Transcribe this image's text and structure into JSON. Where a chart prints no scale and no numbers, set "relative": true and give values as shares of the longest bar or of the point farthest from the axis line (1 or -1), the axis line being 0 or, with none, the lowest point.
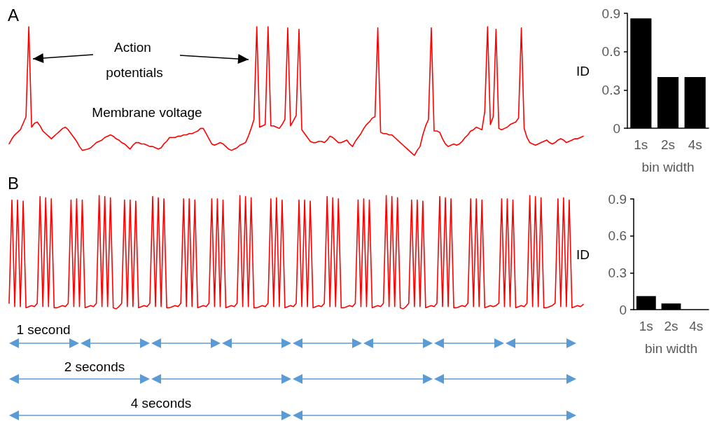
{
  "chart_data": [
    {
      "type": "line",
      "title": "A",
      "relative": true,
      "color": "#ff0000",
      "tick_labels": false,
      "grid": false,
      "annotations": [
        "Action potentials",
        "Membrane voltage"
      ],
      "categories": [
        null,
        null,
        null,
        null,
        null,
        null,
        null,
        null,
        null,
        null,
        null,
        null,
        null,
        null,
        null,
        null,
        null,
        null,
        null,
        null,
        null,
        null,
        null,
        null,
        null,
        null,
        null,
        null,
        null,
        null,
        null,
        null,
        null,
        null,
        null,
        null,
        null,
        null,
        null,
        null,
        null,
        null,
        null,
        null,
        null,
        null,
        null,
        null,
        null,
        null,
        null,
        null,
        null,
        null,
        null,
        null,
        null,
        null,
        null,
        null,
        null,
        null,
        null,
        null,
        null,
        null,
        null,
        null,
        null,
        null,
        null,
        null,
        null,
        null,
        null,
        null,
        null,
        null,
        null,
        null,
        null,
        null,
        null,
        null,
        null,
        null,
        null,
        null,
        null,
        null,
        null,
        null,
        null,
        null,
        null,
        null,
        null,
        null,
        null,
        null,
        null,
        null,
        null,
        null,
        null,
        null,
        null,
        null,
        null,
        null,
        null,
        null,
        null,
        null,
        null,
        null,
        null,
        null,
        null,
        null,
        null,
        null,
        null,
        null,
        null,
        null,
        null,
        null,
        null,
        null,
        null,
        null,
        null,
        null,
        null,
        null,
        null,
        null,
        null,
        null,
        null,
        null,
        null,
        null,
        null,
        null,
        null,
        null,
        null,
        null,
        null,
        null,
        null,
        null,
        null,
        null,
        null,
        null,
        null,
        null,
        null,
        null,
        null,
        null,
        null,
        null,
        null,
        null,
        null,
        null,
        null,
        null,
        null,
        null,
        null,
        null,
        null,
        null,
        null,
        null,
        null,
        null,
        null,
        null,
        null,
        null,
        null,
        null,
        null,
        null,
        null,
        null,
        null,
        null,
        null,
        null,
        null,
        null,
        null,
        null,
        null,
        null,
        null,
        null,
        null
      ],
      "values": [
        0.09,
        0.13,
        0.16,
        0.18,
        0.2,
        0.25,
        0.3,
        1,
        0.22,
        0.25,
        0.26,
        0.23,
        0.19,
        0.17,
        0.15,
        0.13,
        0.15,
        0.17,
        0.19,
        0.21,
        0.22,
        0.2,
        0.17,
        0.14,
        0.11,
        0.07,
        0.04,
        0.045,
        0.05,
        0.06,
        0.08,
        0.1,
        0.11,
        0.12,
        0.14,
        0.15,
        0.16,
        0.15,
        0.13,
        0.12,
        0.1,
        0.09,
        0.07,
        0.05,
        0.08,
        0.1,
        0.1,
        0.09,
        0.09,
        0.08,
        0.07,
        0.07,
        0.06,
        0.05,
        0.06,
        0.09,
        0.11,
        0.14,
        0.14,
        0.14,
        0.15,
        0.15,
        0.16,
        0.16,
        0.17,
        0.17,
        0.18,
        0.19,
        0.21,
        0.21,
        0.17,
        0.13,
        0.09,
        0.08,
        0.09,
        0.1,
        0.09,
        0.07,
        0.05,
        0.04,
        0.05,
        0.06,
        0.08,
        0.09,
        0.1,
        0.15,
        0.21,
        0.28,
        1,
        0.22,
        0.23,
        0.24,
        1,
        0.23,
        0.23,
        0.22,
        0.21,
        0.24,
        0.28,
        0.99,
        0.23,
        0.27,
        0.31,
        0.98,
        0.2,
        0.17,
        0.14,
        0.11,
        0.1,
        0.1,
        0.11,
        0.11,
        0.1,
        0.12,
        0.15,
        0.14,
        0.12,
        0.1,
        0.1,
        0.11,
        0.12,
        0.09,
        0.07,
        0.11,
        0.14,
        0.17,
        0.21,
        0.24,
        0.26,
        0.29,
        0.3,
        0.99,
        0.18,
        0.17,
        0.17,
        0.16,
        0.16,
        0.14,
        0.12,
        0.1,
        0.08,
        0.06,
        0.04,
        0.02,
        0,
        0.04,
        0.07,
        0.16,
        0.23,
        0.28,
        0.99,
        0.19,
        0.19,
        0.18,
        0.13,
        0.09,
        0.07,
        0.08,
        0.09,
        0.08,
        0.09,
        0.11,
        0.14,
        0.16,
        0.19,
        0.2,
        0.22,
        0.21,
        0.2,
        0.34,
        1,
        0.24,
        0.3,
        0.98,
        0.21,
        0.2,
        0.21,
        0.22,
        0.24,
        0.25,
        0.26,
        0.29,
        0.99,
        0.21,
        0.14,
        0.1,
        0.09,
        0.08,
        0.09,
        0.1,
        0.11,
        0.12,
        0.1,
        0.09,
        0.1,
        0.12,
        0.13,
        0.12,
        0.1,
        0.11,
        0.12,
        0.13,
        0.13,
        0.14,
        0.15
      ]
    },
    {
      "type": "bar",
      "categories": [
        "1s",
        "2s",
        "4s"
      ],
      "values": [
        0.86,
        0.4,
        0.4
      ],
      "color": "#000000",
      "xlabel": "bin width",
      "ylabel": "ID",
      "ylim": [
        0,
        0.9
      ],
      "yticks": [
        0,
        0.3,
        0.6,
        0.9
      ],
      "grid": false
    },
    {
      "type": "line",
      "title": "B",
      "relative": true,
      "color": "#ff0000",
      "tick_labels": false,
      "grid": false,
      "annotations": [
        "1 second",
        "2 seconds",
        "4 seconds"
      ],
      "categories": [
        null,
        null,
        null,
        null,
        null,
        null,
        null,
        null,
        null,
        null,
        null,
        null,
        null,
        null,
        null,
        null,
        null,
        null,
        null,
        null,
        null,
        null,
        null,
        null,
        null,
        null,
        null,
        null,
        null,
        null,
        null,
        null,
        null,
        null,
        null,
        null,
        null,
        null,
        null,
        null,
        null,
        null,
        null,
        null,
        null,
        null,
        null,
        null,
        null,
        null,
        null,
        null,
        null,
        null,
        null,
        null,
        null,
        null,
        null,
        null,
        null,
        null,
        null,
        null,
        null,
        null,
        null,
        null,
        null,
        null,
        null,
        null,
        null,
        null,
        null,
        null,
        null,
        null,
        null,
        null,
        null,
        null,
        null,
        null,
        null,
        null,
        null,
        null,
        null,
        null,
        null,
        null,
        null,
        null,
        null,
        null,
        null,
        null,
        null,
        null,
        null,
        null,
        null,
        null,
        null,
        null,
        null,
        null,
        null,
        null,
        null,
        null,
        null,
        null,
        null,
        null,
        null,
        null,
        null,
        null,
        null,
        null,
        null,
        null,
        null,
        null,
        null,
        null,
        null,
        null,
        null,
        null,
        null,
        null,
        null,
        null,
        null,
        null,
        null,
        null,
        null,
        null,
        null,
        null,
        null,
        null,
        null,
        null,
        null,
        null,
        null,
        null,
        null,
        null,
        null,
        null,
        null,
        null,
        null,
        null,
        null,
        null,
        null,
        null,
        null,
        null,
        null,
        null,
        null,
        null,
        null,
        null,
        null,
        null,
        null,
        null,
        null,
        null,
        null,
        null,
        null,
        null,
        null,
        null,
        null,
        null,
        null,
        null,
        null,
        null,
        null,
        null,
        null,
        null,
        null,
        null,
        null,
        null,
        null,
        null,
        null,
        null,
        null,
        null,
        null
      ],
      "values": [
        0.05,
        0.96,
        0.02,
        0.96,
        0.02,
        0.95,
        0.01,
        0.02,
        0.03,
        0.02,
        0.05,
        0.99,
        0.02,
        0.98,
        0.02,
        0.97,
        0.01,
        0.01,
        0.02,
        0.03,
        0.02,
        0.05,
        0.96,
        0.02,
        0.97,
        0.02,
        0.96,
        0.01,
        0.02,
        0.03,
        0.02,
        0.05,
        1,
        0.02,
        0.99,
        0.02,
        0.98,
        0.01,
        0,
        0.02,
        0.05,
        0.96,
        0.02,
        0.96,
        0.02,
        0.95,
        0.01,
        0.02,
        0.03,
        0.02,
        0.05,
        0.99,
        0.02,
        0.98,
        0.02,
        0.97,
        0.01,
        0.01,
        0.02,
        0.03,
        0.02,
        0.05,
        0.97,
        0.02,
        0.97,
        0.02,
        0.96,
        0.01,
        0.02,
        0.03,
        0.02,
        0.05,
        0.97,
        0.02,
        0.97,
        0.02,
        0.96,
        0.01,
        0.02,
        0.03,
        0.02,
        0.05,
        1,
        0.02,
        0.99,
        0.02,
        0.98,
        0.01,
        0.01,
        0.02,
        0.03,
        0.02,
        0.05,
        0.97,
        0.02,
        0.98,
        0.02,
        0.96,
        0.01,
        0.02,
        0.03,
        0.02,
        0.05,
        0.96,
        0.02,
        0.96,
        0.02,
        0.95,
        0.01,
        0.02,
        0.03,
        0.02,
        0.05,
        0.99,
        0.02,
        0.98,
        0.02,
        0.97,
        0.01,
        0.01,
        0.02,
        0.03,
        0.02,
        0.05,
        0.96,
        0.02,
        0.97,
        0.02,
        0.96,
        0.01,
        0.02,
        0.03,
        0.02,
        0.05,
        1,
        0.02,
        0.99,
        0.02,
        0.98,
        0.01,
        0,
        0.02,
        0.05,
        0.96,
        0.02,
        0.96,
        0.02,
        0.95,
        0.01,
        0.02,
        0.03,
        0.02,
        0.05,
        0.99,
        0.02,
        0.98,
        0.02,
        0.97,
        0.01,
        0.01,
        0.02,
        0.03,
        0.02,
        0.05,
        0.97,
        0.02,
        0.97,
        0.02,
        0.96,
        0.01,
        0.02,
        0.03,
        0.02,
        0.03,
        0.05,
        0.97,
        0.02,
        0.97,
        0.02,
        0.96,
        0.01,
        0.02,
        0.03,
        0.02,
        0.05,
        1,
        0.02,
        0.99,
        0.02,
        0.98,
        0.01,
        0.01,
        0.02,
        0.03,
        0.05,
        0.97,
        0.02,
        0.98,
        0.02,
        0.96,
        0.01,
        0.02,
        0.03,
        0.02,
        0.04
      ]
    },
    {
      "type": "bar",
      "categories": [
        "1s",
        "2s",
        "4s"
      ],
      "values": [
        0.11,
        0.05,
        0
      ],
      "color": "#000000",
      "xlabel": "bin width",
      "ylabel": "ID",
      "ylim": [
        0,
        0.9
      ],
      "yticks": [
        0,
        0.3,
        0.6,
        0.9
      ],
      "grid": false
    }
  ]
}
